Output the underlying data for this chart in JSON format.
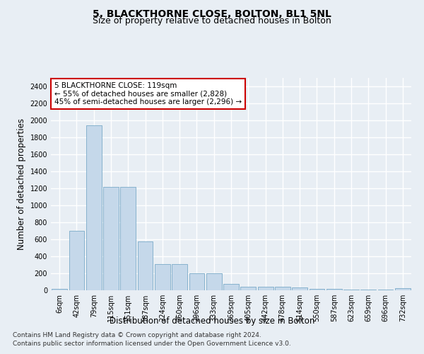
{
  "title": "5, BLACKTHORNE CLOSE, BOLTON, BL1 5NL",
  "subtitle": "Size of property relative to detached houses in Bolton",
  "xlabel": "Distribution of detached houses by size in Bolton",
  "ylabel": "Number of detached properties",
  "bar_labels": [
    "6sqm",
    "42sqm",
    "79sqm",
    "115sqm",
    "151sqm",
    "187sqm",
    "224sqm",
    "260sqm",
    "296sqm",
    "333sqm",
    "369sqm",
    "405sqm",
    "442sqm",
    "478sqm",
    "514sqm",
    "550sqm",
    "587sqm",
    "623sqm",
    "659sqm",
    "696sqm",
    "732sqm"
  ],
  "bar_values": [
    15,
    700,
    1940,
    1220,
    1220,
    575,
    305,
    305,
    200,
    200,
    75,
    45,
    38,
    38,
    35,
    18,
    15,
    5,
    5,
    5,
    22
  ],
  "bar_color": "#c5d8ea",
  "bar_edge_color": "#7aaac8",
  "annotation_text": "5 BLACKTHORNE CLOSE: 119sqm\n← 55% of detached houses are smaller (2,828)\n45% of semi-detached houses are larger (2,296) →",
  "annotation_box_facecolor": "#ffffff",
  "annotation_box_edgecolor": "#cc0000",
  "ylim": [
    0,
    2500
  ],
  "yticks": [
    0,
    200,
    400,
    600,
    800,
    1000,
    1200,
    1400,
    1600,
    1800,
    2000,
    2200,
    2400
  ],
  "footer_line1": "Contains HM Land Registry data © Crown copyright and database right 2024.",
  "footer_line2": "Contains public sector information licensed under the Open Government Licence v3.0.",
  "bg_color": "#e8eef4",
  "plot_bg_color": "#e8eef4",
  "grid_color": "#ffffff",
  "title_fontsize": 10,
  "subtitle_fontsize": 9,
  "axis_label_fontsize": 8.5,
  "tick_fontsize": 7,
  "annotation_fontsize": 7.5,
  "footer_fontsize": 6.5
}
